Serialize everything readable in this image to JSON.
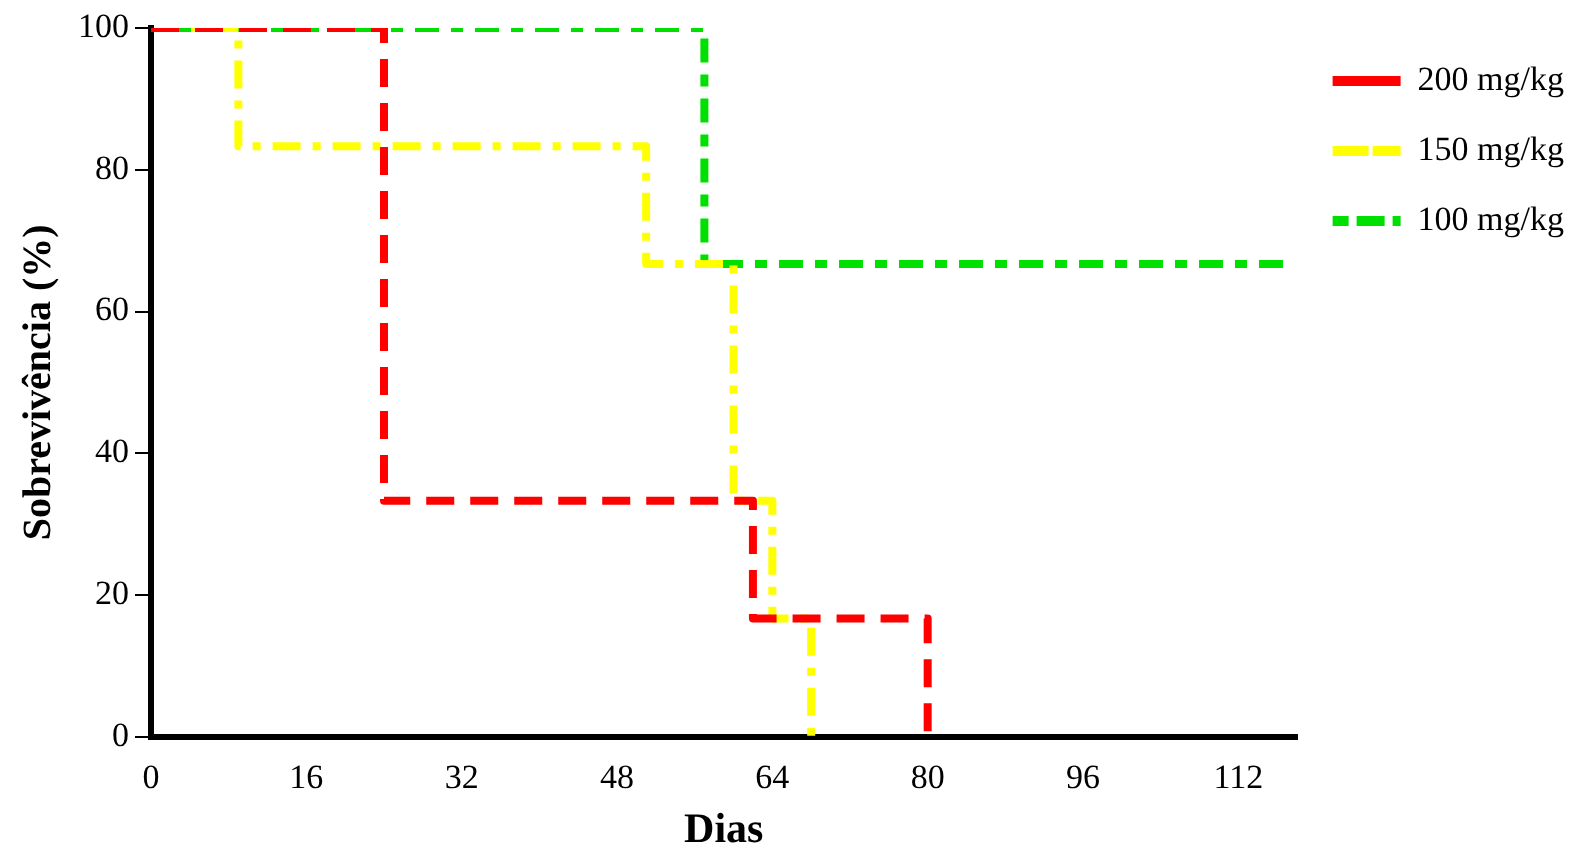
{
  "chart_data": {
    "type": "step",
    "xlabel": "Dias",
    "ylabel": "Sobrevivência (%)",
    "xlim": [
      0,
      118
    ],
    "xticks": [
      0,
      16,
      32,
      48,
      64,
      80,
      96,
      112
    ],
    "ylim": [
      0,
      100
    ],
    "yticks": [
      0,
      20,
      40,
      60,
      80,
      100
    ],
    "grid": false,
    "legend": "top right",
    "marker": "none",
    "series": [
      {
        "name": "200 mg/kg",
        "color": "#ff0000",
        "line_style": "dashed",
        "x": [
          0,
          24,
          62,
          80
        ],
        "values": [
          100,
          33.3,
          16.7,
          0
        ]
      },
      {
        "name": "150 mg/kg",
        "color": "#ffff00",
        "line_style": "dashdot",
        "x": [
          0,
          9,
          51,
          60,
          64,
          68
        ],
        "values": [
          100,
          83.3,
          66.7,
          33.3,
          16.7,
          0
        ]
      },
      {
        "name": "100 mg/kg",
        "color": "#00e000",
        "line_style": "dotted",
        "x": [
          0,
          57,
          117
        ],
        "values": [
          100,
          66.7,
          66.7
        ]
      }
    ]
  }
}
